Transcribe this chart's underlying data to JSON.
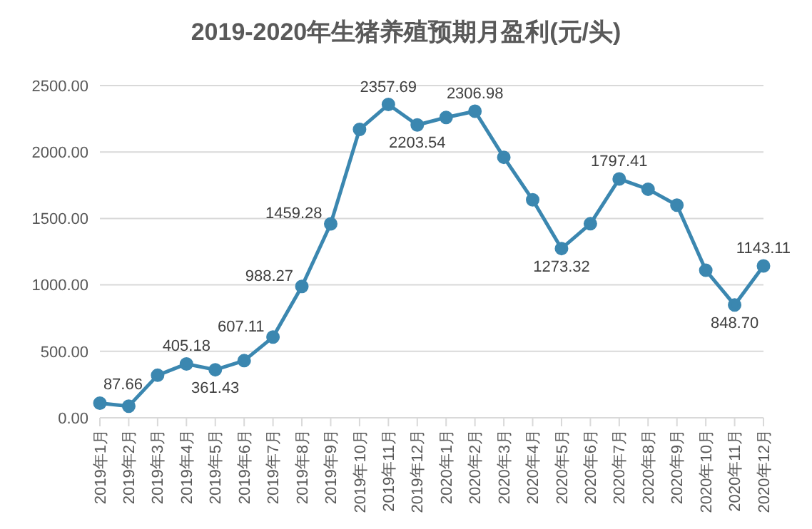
{
  "chart_data": {
    "type": "line",
    "title": "2019-2020年生猪养殖预期月盈利(元/头)",
    "categories": [
      "2019年1月",
      "2019年2月",
      "2019年3月",
      "2019年4月",
      "2019年5月",
      "2019年6月",
      "2019年7月",
      "2019年8月",
      "2019年9月",
      "2019年10月",
      "2019年11月",
      "2019年12月",
      "2020年1月",
      "2020年2月",
      "2020年3月",
      "2020年4月",
      "2020年5月",
      "2020年6月",
      "2020年7月",
      "2020年8月",
      "2020年9月",
      "2020年10月",
      "2020年11月",
      "2020年12月"
    ],
    "series": [
      {
        "color": "#3b87b0",
        "values": [
          110,
          87.66,
          320,
          405.18,
          361.43,
          430,
          607.11,
          988.27,
          1459.28,
          2170,
          2357.69,
          2203.54,
          2260,
          2306.98,
          1960,
          1640,
          1273.32,
          1460,
          1797.41,
          1720,
          1600,
          1110,
          848.7,
          1143.11
        ],
        "value_labels": [
          null,
          "87.66",
          null,
          "405.18",
          "361.43",
          null,
          "607.11",
          "988.27",
          "1459.28",
          null,
          "2357.69",
          "2203.54",
          null,
          "2306.98",
          null,
          null,
          "1273.32",
          null,
          "1797.41",
          null,
          null,
          null,
          "848.70",
          "1143.11"
        ]
      }
    ],
    "ylim": [
      0,
      2500
    ],
    "yticks": [
      {
        "value": 0,
        "label": "0.00"
      },
      {
        "value": 500,
        "label": "500.00"
      },
      {
        "value": 1000,
        "label": "1000.00"
      },
      {
        "value": 1500,
        "label": "1500.00"
      },
      {
        "value": 2000,
        "label": "2000.00"
      },
      {
        "value": 2500,
        "label": "2500.00"
      }
    ],
    "grid": "y",
    "marker": "circle",
    "line_style": "solid",
    "legend": false
  }
}
